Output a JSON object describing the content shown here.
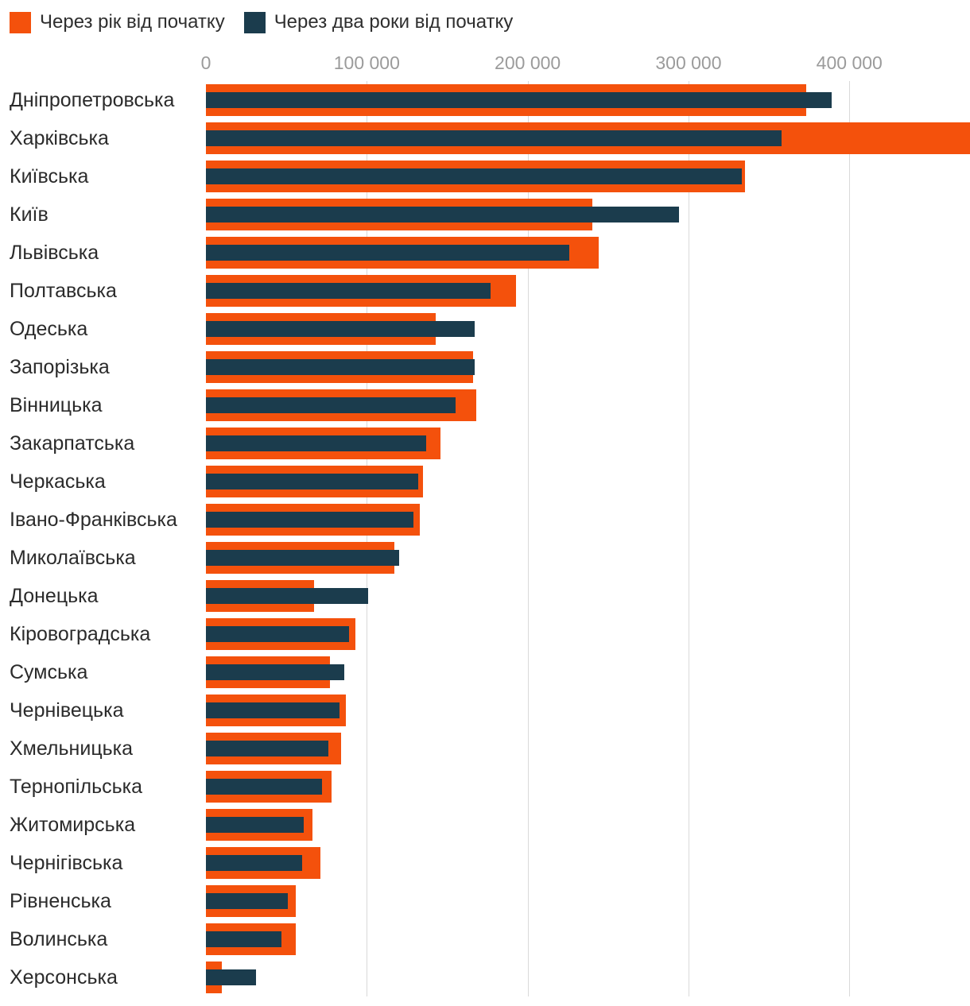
{
  "chart_data": {
    "type": "bar",
    "orientation": "horizontal",
    "title": "",
    "legend_position": "top-left",
    "grid": true,
    "categories": [
      "Дніпропетровська",
      "Харківська",
      "Київська",
      "Київ",
      "Львівська",
      "Полтавська",
      "Одеська",
      "Запорізька",
      "Вінницька",
      "Закарпатська",
      "Черкаська",
      "Івано-Франківська",
      "Миколаївська",
      "Донецька",
      "Кіровоградська",
      "Сумська",
      "Чернівецька",
      "Хмельницька",
      "Тернопільська",
      "Житомирська",
      "Чернігівська",
      "Рівненська",
      "Волинська",
      "Херсонська"
    ],
    "series": [
      {
        "name": "Через рік від початку",
        "color": "#f4510c",
        "values": [
          373000,
          475000,
          335000,
          240000,
          244000,
          193000,
          143000,
          166000,
          168000,
          146000,
          135000,
          133000,
          117000,
          67000,
          93000,
          77000,
          87000,
          84000,
          78000,
          66000,
          71000,
          56000,
          56000,
          10000
        ]
      },
      {
        "name": "Через два роки від початку",
        "color": "#1b3c4d",
        "values": [
          389000,
          358000,
          333000,
          294000,
          226000,
          177000,
          167000,
          167000,
          155000,
          137000,
          132000,
          129000,
          120000,
          101000,
          89000,
          86000,
          83000,
          76000,
          72000,
          61000,
          60000,
          51000,
          47000,
          31000
        ]
      }
    ],
    "x_axis": {
      "max": 475000,
      "ticks": [
        {
          "label": "0",
          "value": 0
        },
        {
          "label": "100 000",
          "value": 100000
        },
        {
          "label": "200 000",
          "value": 200000
        },
        {
          "label": "300 000",
          "value": 300000
        },
        {
          "label": "400 000",
          "value": 400000
        }
      ]
    },
    "colors": {
      "gridline": "#d9d9d9",
      "tick_text": "#9b9b9b",
      "label_text": "#2b2b2b"
    }
  }
}
